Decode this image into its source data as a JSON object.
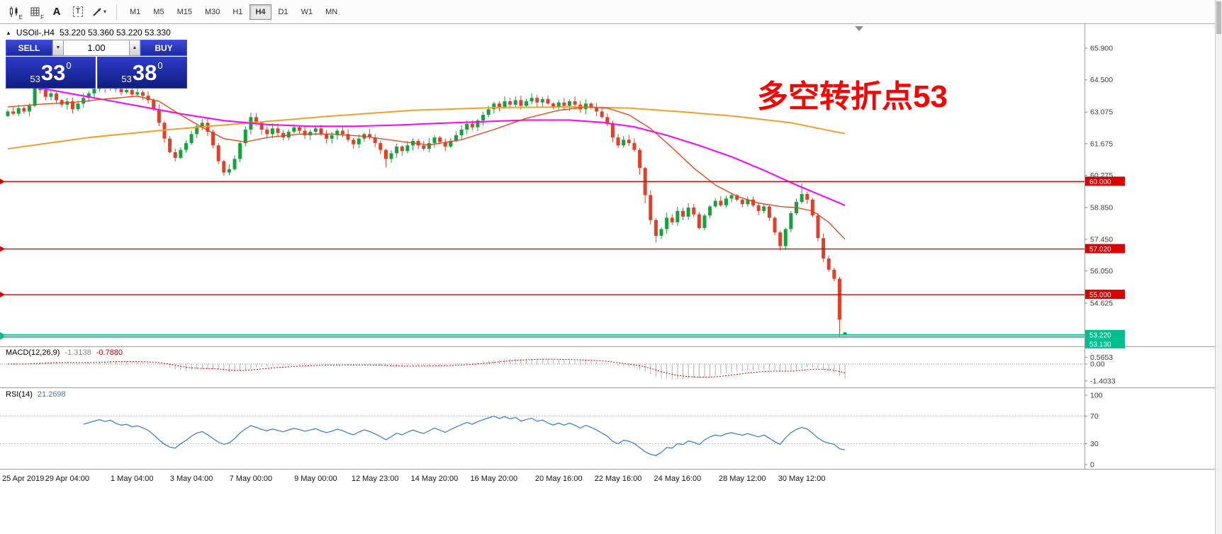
{
  "toolbar": {
    "icon_labels": {
      "chart_sub": "E",
      "grid_sub": "F",
      "text_tool": "A",
      "textbox_tool": "T",
      "drawing_caret": "▾"
    },
    "timeframes": {
      "items": [
        "M1",
        "M5",
        "M15",
        "M30",
        "H1",
        "H4",
        "D1",
        "W1",
        "MN"
      ],
      "active": "H4"
    }
  },
  "chart": {
    "title_marker": "▲",
    "symbol_title": "USOil-,H4",
    "ohlc": "53.220 53.360 53.220 53.330",
    "annotation": {
      "text": "多空转折点53",
      "color": "#fe0000"
    }
  },
  "trading": {
    "sell_label": "SELL",
    "buy_label": "BUY",
    "volume": "1.00",
    "spin_down_glyph": "▼",
    "spin_up_glyph": "▲",
    "sell_price": {
      "prefix": "53",
      "big": "33",
      "sup": "0"
    },
    "buy_price": {
      "prefix": "53",
      "big": "38",
      "sup": "0"
    }
  },
  "indicators": {
    "macd": {
      "label": "MACD(12,26,9)",
      "value1": "-1.3138",
      "value2": "-0.7880",
      "scale": [
        "0.5653",
        "0.00",
        "-1.4033"
      ]
    },
    "rsi": {
      "label": "RSI(14)",
      "value": "21.2698",
      "scale": [
        "100",
        "70",
        "30",
        "0"
      ],
      "levels": [
        70,
        30
      ]
    }
  },
  "chart_data": {
    "type": "candlestick",
    "symbol": "USOil-",
    "timeframe": "H4",
    "up_color": "#12a33b",
    "down_color": "#e0402a",
    "y_ticks": [
      "65.900",
      "64.500",
      "63.075",
      "61.675",
      "60.275",
      "58.850",
      "57.450",
      "56.050",
      "54.625"
    ],
    "h_lines": [
      {
        "price": 60.0,
        "label": "60.000",
        "color": "#dd0000",
        "width": 1.4
      },
      {
        "price": 57.02,
        "label": "57.020",
        "color": "#dd0000",
        "width": 1.4
      },
      {
        "price": 55.0,
        "label": "55.000",
        "color": "#dd0000",
        "width": 1.4
      },
      {
        "price": 53.22,
        "label": "53.220",
        "color": "#00bf8f",
        "width": 1.8
      },
      {
        "price": 53.13,
        "label": "53.130",
        "color": "#00bf8f",
        "width": 1.8
      }
    ],
    "x_ticks": [
      {
        "i": 0,
        "label": "25 Apr 2019"
      },
      {
        "i": 11,
        "label": "29 Apr 04:00"
      },
      {
        "i": 23,
        "label": "1 May 04:00"
      },
      {
        "i": 34,
        "label": "3 May 04:00"
      },
      {
        "i": 45,
        "label": "7 May 00:00"
      },
      {
        "i": 57,
        "label": "9 May 00:00"
      },
      {
        "i": 68,
        "label": "12 May 23:00"
      },
      {
        "i": 79,
        "label": "14 May 20:00"
      },
      {
        "i": 90,
        "label": "16 May 20:00"
      },
      {
        "i": 102,
        "label": "20 May 16:00"
      },
      {
        "i": 113,
        "label": "22 May 16:00"
      },
      {
        "i": 124,
        "label": "24 May 16:00"
      },
      {
        "i": 136,
        "label": "28 May 12:00"
      },
      {
        "i": 147,
        "label": "30 May 12:00"
      }
    ],
    "closes": [
      63.1,
      63.0,
      63.25,
      63.1,
      63.35,
      64.2,
      64.05,
      63.75,
      63.9,
      63.6,
      63.4,
      63.55,
      63.2,
      63.45,
      63.7,
      63.9,
      64.1,
      64.3,
      64.15,
      64.35,
      64.1,
      63.95,
      64.05,
      63.85,
      63.95,
      63.8,
      63.6,
      63.2,
      62.6,
      61.9,
      61.3,
      61.05,
      61.4,
      61.7,
      62.1,
      62.45,
      62.6,
      62.2,
      61.6,
      60.9,
      60.4,
      60.55,
      61.0,
      61.7,
      62.3,
      62.85,
      62.6,
      62.3,
      62.1,
      62.35,
      62.15,
      61.95,
      62.2,
      62.4,
      62.25,
      62.05,
      62.2,
      62.35,
      62.1,
      61.9,
      62.05,
      62.25,
      62.1,
      61.85,
      61.65,
      61.9,
      62.1,
      61.95,
      61.7,
      61.4,
      61.0,
      61.25,
      61.55,
      61.35,
      61.6,
      61.8,
      61.6,
      61.45,
      61.7,
      61.95,
      61.75,
      61.55,
      61.8,
      62.05,
      62.3,
      62.55,
      62.4,
      62.7,
      62.95,
      63.2,
      63.45,
      63.3,
      63.55,
      63.4,
      63.6,
      63.35,
      63.55,
      63.7,
      63.5,
      63.65,
      63.45,
      63.3,
      63.5,
      63.35,
      63.55,
      63.4,
      63.2,
      63.45,
      63.3,
      63.1,
      62.85,
      62.55,
      61.95,
      61.6,
      61.85,
      61.7,
      61.4,
      60.6,
      59.4,
      58.3,
      57.6,
      57.9,
      58.4,
      58.2,
      58.7,
      58.45,
      58.85,
      58.55,
      57.95,
      58.5,
      58.9,
      59.15,
      58.95,
      59.25,
      59.4,
      59.2,
      59.0,
      59.2,
      58.95,
      58.7,
      58.9,
      58.4,
      57.75,
      57.15,
      57.9,
      58.6,
      59.1,
      59.45,
      59.2,
      58.5,
      57.5,
      56.6,
      56.1,
      55.7,
      53.9,
      53.33
    ],
    "overrides": {
      "5": [
        63.35,
        64.52,
        63.28,
        64.2
      ],
      "40": [
        60.9,
        60.95,
        60.25,
        60.4
      ],
      "70": [
        61.4,
        61.45,
        60.62,
        61.0
      ],
      "117": [
        61.4,
        61.48,
        60.3,
        60.6
      ],
      "118": [
        60.6,
        60.66,
        59.05,
        59.4
      ],
      "120": [
        58.3,
        58.38,
        57.3,
        57.6
      ],
      "143": [
        57.75,
        57.82,
        56.95,
        57.15
      ],
      "147": [
        59.1,
        59.92,
        59.02,
        59.45
      ],
      "154": [
        55.7,
        55.78,
        53.13,
        53.9
      ],
      "155": [
        53.22,
        53.36,
        53.22,
        53.33
      ]
    },
    "ma_lines": [
      {
        "name": "slow-ma",
        "color": "#f0a028",
        "width": 2,
        "anchors": [
          [
            0,
            61.45
          ],
          [
            15,
            61.95
          ],
          [
            30,
            62.3
          ],
          [
            45,
            62.6
          ],
          [
            60,
            62.9
          ],
          [
            75,
            63.15
          ],
          [
            90,
            63.27
          ],
          [
            105,
            63.3
          ],
          [
            115,
            63.25
          ],
          [
            125,
            63.08
          ],
          [
            135,
            62.88
          ],
          [
            145,
            62.6
          ],
          [
            155,
            62.12
          ]
        ]
      },
      {
        "name": "mid-ma",
        "color": "#ff00ff",
        "width": 2,
        "anchors": [
          [
            0,
            64.35
          ],
          [
            8,
            64.05
          ],
          [
            16,
            63.7
          ],
          [
            24,
            63.35
          ],
          [
            32,
            63.0
          ],
          [
            40,
            62.7
          ],
          [
            48,
            62.52
          ],
          [
            56,
            62.45
          ],
          [
            64,
            62.45
          ],
          [
            72,
            62.5
          ],
          [
            80,
            62.58
          ],
          [
            88,
            62.65
          ],
          [
            96,
            62.72
          ],
          [
            104,
            62.72
          ],
          [
            110,
            62.62
          ],
          [
            116,
            62.42
          ],
          [
            122,
            62.05
          ],
          [
            128,
            61.6
          ],
          [
            134,
            61.1
          ],
          [
            140,
            60.5
          ],
          [
            146,
            59.85
          ],
          [
            151,
            59.35
          ],
          [
            155,
            58.95
          ]
        ]
      },
      {
        "name": "fast-ma",
        "color": "#f03c14",
        "width": 1.3,
        "anchors": [
          [
            0,
            63.3
          ],
          [
            6,
            63.42
          ],
          [
            12,
            63.5
          ],
          [
            18,
            63.65
          ],
          [
            24,
            63.78
          ],
          [
            28,
            63.55
          ],
          [
            32,
            62.95
          ],
          [
            36,
            62.4
          ],
          [
            40,
            61.9
          ],
          [
            44,
            61.75
          ],
          [
            48,
            61.95
          ],
          [
            54,
            62.1
          ],
          [
            60,
            62.1
          ],
          [
            66,
            62.0
          ],
          [
            72,
            61.8
          ],
          [
            78,
            61.62
          ],
          [
            84,
            61.85
          ],
          [
            90,
            62.3
          ],
          [
            96,
            62.8
          ],
          [
            102,
            63.15
          ],
          [
            107,
            63.3
          ],
          [
            111,
            63.25
          ],
          [
            115,
            62.95
          ],
          [
            119,
            62.35
          ],
          [
            123,
            61.5
          ],
          [
            127,
            60.6
          ],
          [
            131,
            59.85
          ],
          [
            135,
            59.35
          ],
          [
            139,
            59.05
          ],
          [
            143,
            58.9
          ],
          [
            146,
            58.85
          ],
          [
            149,
            58.7
          ],
          [
            152,
            58.2
          ],
          [
            155,
            57.45
          ]
        ]
      }
    ]
  }
}
